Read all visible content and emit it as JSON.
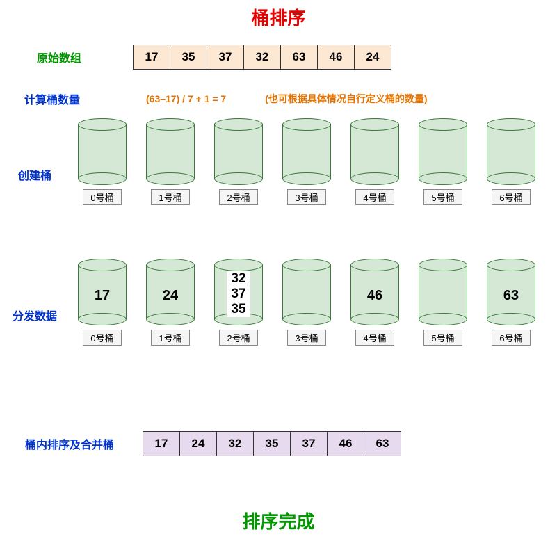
{
  "title": {
    "text": "桶排序",
    "color": "#e60000",
    "fontsize": 26
  },
  "original": {
    "label": "原始数组",
    "label_color": "#009900",
    "values": [
      "17",
      "35",
      "37",
      "32",
      "63",
      "46",
      "24"
    ],
    "cell_bg": "#fde9d3",
    "cell_text": "#000000"
  },
  "calc": {
    "label": "计算桶数量",
    "label_color": "#0033cc",
    "formula": "(63–17) / 7 + 1 = 7",
    "formula_color": "#e67300",
    "note": "(也可根据具体情况自行定义桶的数量)",
    "note_color": "#e67300"
  },
  "create": {
    "label": "创建桶",
    "label_color": "#0033cc",
    "bucket_fill": "#d5e8d5",
    "bucket_stroke": "#3a7a3a",
    "buckets": [
      "0号桶",
      "1号桶",
      "2号桶",
      "3号桶",
      "4号桶",
      "5号桶",
      "6号桶"
    ]
  },
  "distribute": {
    "label": "分发数据",
    "label_color": "#0033cc",
    "buckets": [
      {
        "label": "0号桶",
        "values": [
          "17"
        ]
      },
      {
        "label": "1号桶",
        "values": [
          "24"
        ]
      },
      {
        "label": "2号桶",
        "values": [
          "32",
          "37",
          "35"
        ]
      },
      {
        "label": "3号桶",
        "values": []
      },
      {
        "label": "4号桶",
        "values": [
          "46"
        ]
      },
      {
        "label": "5号桶",
        "values": []
      },
      {
        "label": "6号桶",
        "values": [
          "63"
        ]
      }
    ]
  },
  "merge": {
    "label": "桶内排序及合并桶",
    "label_color": "#0033cc",
    "values": [
      "17",
      "24",
      "32",
      "35",
      "37",
      "46",
      "63"
    ],
    "cell_bg": "#e8daee",
    "cell_text": "#000000"
  },
  "done": {
    "text": "排序完成",
    "color": "#009900",
    "fontsize": 26
  }
}
